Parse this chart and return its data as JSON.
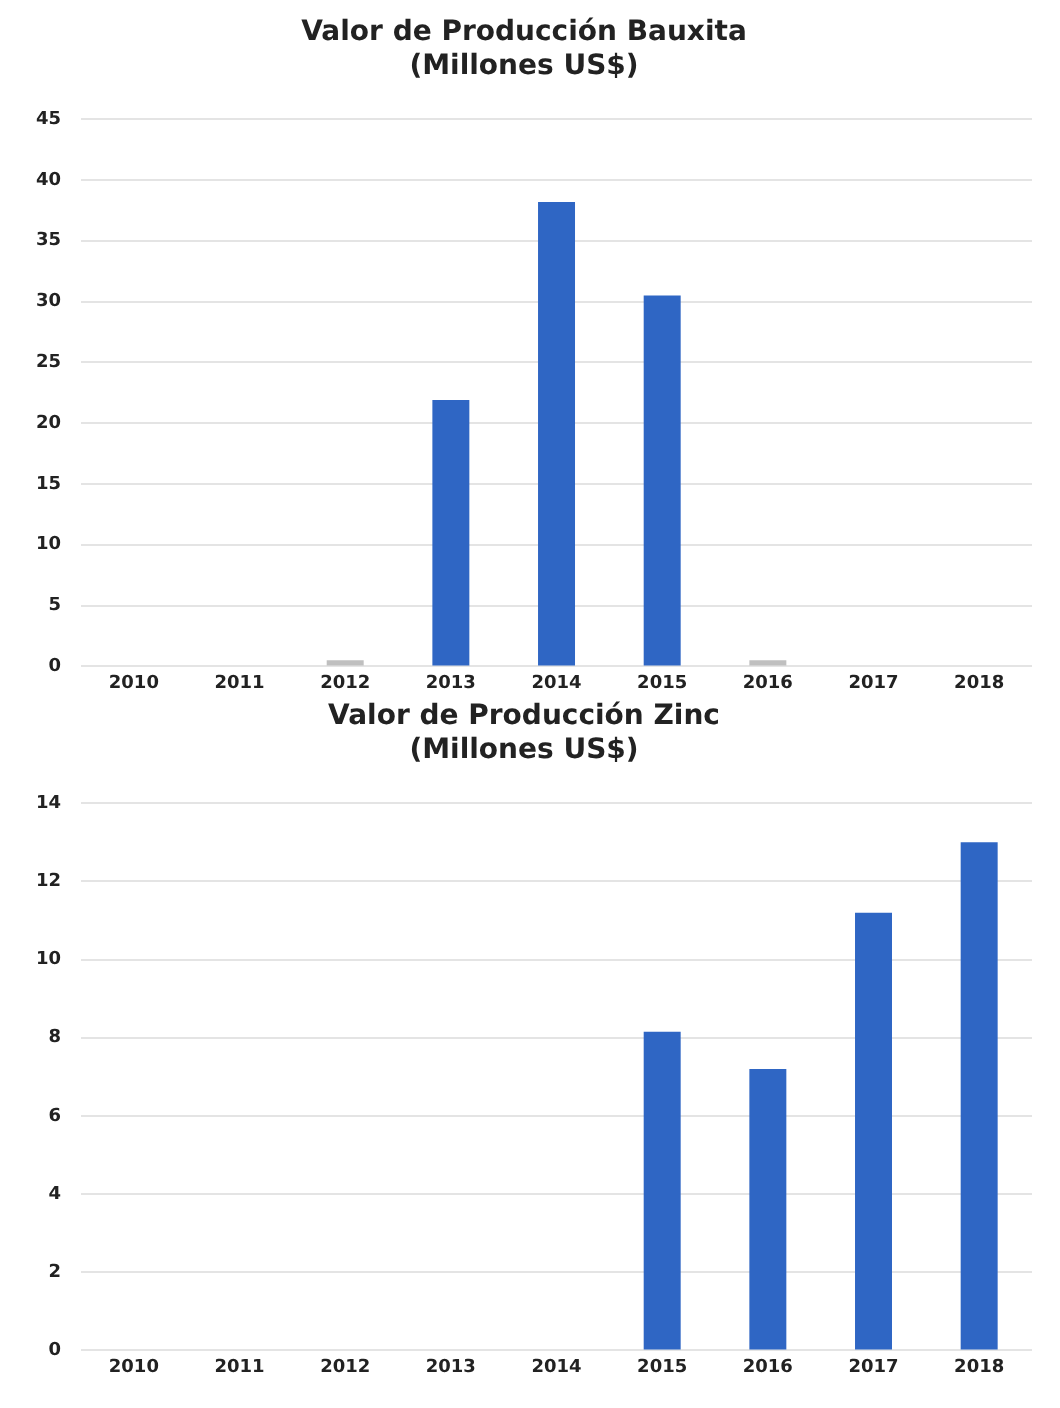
{
  "chart_data": [
    {
      "type": "bar",
      "title": [
        "Valor de Producción Bauxita",
        "(Millones US$)"
      ],
      "categories": [
        "2010",
        "2011",
        "2012",
        "2013",
        "2014",
        "2015",
        "2016",
        "2017",
        "2018"
      ],
      "values": [
        0,
        0,
        0.5,
        21.9,
        38.2,
        30.5,
        0.5,
        0,
        0
      ],
      "colors": [
        "#2f66c4",
        "#2f66c4",
        "#bfbfbf",
        "#2f66c4",
        "#2f66c4",
        "#2f66c4",
        "#bfbfbf",
        "#2f66c4",
        "#2f66c4"
      ],
      "ylim": [
        0,
        45
      ],
      "yticks": [
        0,
        5,
        10,
        15,
        20,
        25,
        30,
        35,
        40,
        45
      ],
      "grid": "y",
      "legend": false
    },
    {
      "type": "bar",
      "title": [
        "Valor de Producción Zinc",
        "(Millones US$)"
      ],
      "categories": [
        "2010",
        "2011",
        "2012",
        "2013",
        "2014",
        "2015",
        "2016",
        "2017",
        "2018"
      ],
      "values": [
        0,
        0,
        0,
        0,
        0,
        8.15,
        7.2,
        11.2,
        13.0
      ],
      "color": "#2f66c4",
      "ylim": [
        0,
        14
      ],
      "yticks": [
        0,
        2,
        4,
        6,
        8,
        10,
        12,
        14
      ],
      "grid": "y",
      "legend": false
    }
  ]
}
